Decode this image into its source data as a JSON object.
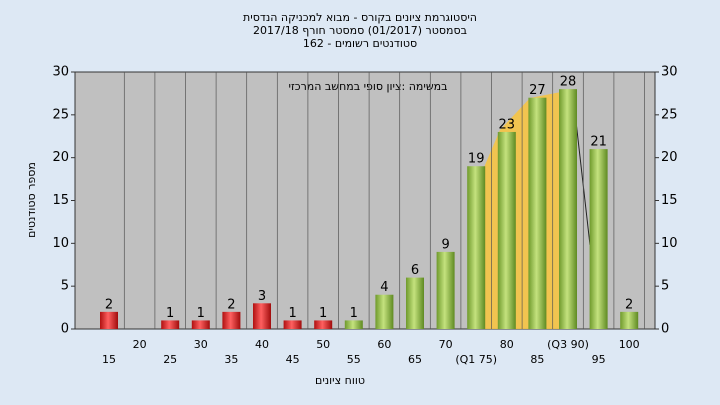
{
  "chart_data": {
    "type": "bar",
    "title": [
      "היסטוגרמת ציונים בקורס - מבוא למכניקה הנדסית",
      "בסמסטר  (01/2017)  סמסטר חורף 2017/18",
      "סטודנטים רשומים - 162"
    ],
    "annotation": "במשימה :ציון סופי במחשב המרכזי",
    "x_label": "טווח ציונים",
    "y_label": "מספר סטודנטים",
    "categories": [
      "15",
      "20",
      "25",
      "30",
      "35",
      "40",
      "45",
      "50",
      "55",
      "60",
      "65",
      "70",
      "(Q1 75)",
      "80",
      "85",
      "(Q3 90)",
      "95",
      "100"
    ],
    "values": [
      2,
      null,
      1,
      1,
      2,
      3,
      1,
      1,
      1,
      4,
      6,
      9,
      19,
      23,
      27,
      28,
      21,
      2
    ],
    "bar_colors": [
      "#e02020",
      "#e02020",
      "#e02020",
      "#e02020",
      "#e02020",
      "#e02020",
      "#e02020",
      "#e02020",
      "#8cbf3f",
      "#8cbf3f",
      "#8cbf3f",
      "#8cbf3f",
      "#8cbf3f",
      "#8cbf3f",
      "#8cbf3f",
      "#8cbf3f",
      "#8cbf3f",
      "#8cbf3f"
    ],
    "ylim": [
      0,
      30
    ],
    "yticks": [
      0,
      5,
      10,
      15,
      20,
      25,
      30
    ],
    "grid": true
  }
}
